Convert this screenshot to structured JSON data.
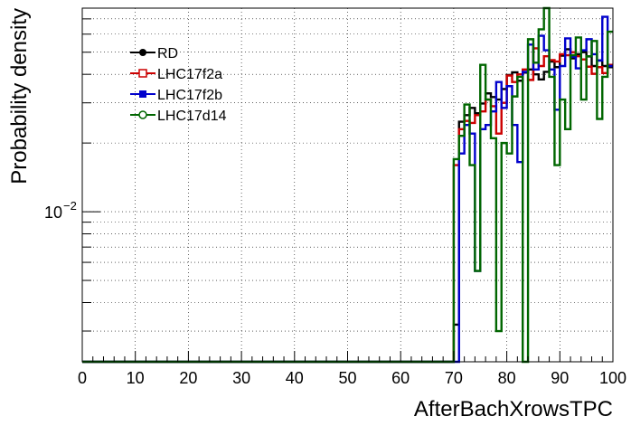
{
  "chart_data": {
    "type": "line",
    "xlabel": "AfterBachXrowsTPC",
    "ylabel": "Probability density",
    "x_ticks": [
      0,
      10,
      20,
      30,
      40,
      50,
      60,
      70,
      80,
      90,
      100
    ],
    "y_tick_label": {
      "base": "10",
      "exp": "−2",
      "value": 0.01
    },
    "ylim": [
      0.0022,
      0.078
    ],
    "ylog": true,
    "grid": true,
    "legend_position": "top-left",
    "bin_edges": [
      70,
      71,
      72,
      73,
      74,
      75,
      76,
      77,
      78,
      79,
      80,
      81,
      82,
      83,
      84,
      85,
      86,
      87,
      88,
      89,
      90,
      91,
      92,
      93,
      94,
      95,
      96,
      97,
      98,
      99,
      100
    ],
    "series": [
      {
        "name": "RD",
        "color": "#000000",
        "marker": "filled-circle",
        "values": [
          0.0032,
          0.0248,
          0.0265,
          0.0285,
          0.027,
          0.0298,
          0.033,
          0.0318,
          0.031,
          0.0345,
          0.0397,
          0.0408,
          0.0375,
          0.0407,
          0.042,
          0.04,
          0.038,
          0.041,
          0.0455,
          0.043,
          0.0483,
          0.0515,
          0.047,
          0.049,
          0.05,
          0.0479,
          0.0435,
          0.046,
          0.0435,
          0.043
        ]
      },
      {
        "name": "LHC17f2a",
        "color": "#cc0000",
        "marker": "open-square",
        "values": [
          0.016,
          0.023,
          0.025,
          0.0245,
          0.0265,
          0.0275,
          0.031,
          0.029,
          0.022,
          0.03,
          0.0395,
          0.037,
          0.04,
          0.042,
          0.0378,
          0.052,
          0.0435,
          0.048,
          0.0462,
          0.0455,
          0.049,
          0.0485,
          0.05,
          0.048,
          0.0465,
          0.0432,
          0.0402,
          0.043,
          0.0405,
          0.044
        ]
      },
      {
        "name": "LHC17f2b",
        "color": "#0000cc",
        "marker": "filled-square",
        "values": [
          0.0015,
          0.018,
          0.024,
          0.022,
          0.0055,
          0.023,
          0.024,
          0.0275,
          0.037,
          0.0285,
          0.0355,
          0.024,
          0.0165,
          0.041,
          0.054,
          0.042,
          0.059,
          0.051,
          0.042,
          0.028,
          0.0435,
          0.0575,
          0.0478,
          0.0425,
          0.051,
          0.057,
          0.049,
          0.046,
          0.0715,
          0.0435
        ]
      },
      {
        "name": "LHC17d14",
        "color": "#006600",
        "marker": "open-circle",
        "values": [
          0.017,
          0.0215,
          0.0295,
          0.016,
          0.0055,
          0.044,
          0.031,
          0.021,
          0.003,
          0.02,
          0.018,
          0.032,
          0.039,
          0.0015,
          0.057,
          0.045,
          0.063,
          0.0785,
          0.039,
          0.016,
          0.031,
          0.023,
          0.0485,
          0.058,
          0.031,
          0.048,
          0.056,
          0.0255,
          0.039,
          0.0615
        ]
      }
    ]
  }
}
